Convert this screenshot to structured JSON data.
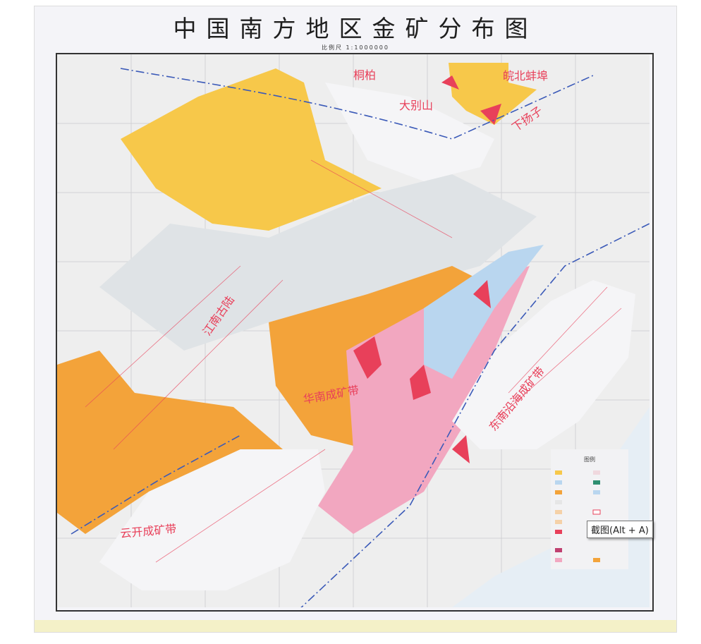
{
  "map": {
    "title": "中国南方地区金矿分布图",
    "scale_label": "比例尺 1:1000000",
    "region_labels": [
      "桐柏",
      "大别山",
      "皖北蚌埠",
      "下扬子",
      "江南古陆",
      "华南成矿带",
      "东南沿海成矿带",
      "云开成矿带"
    ],
    "legend_title": "图例",
    "colors": {
      "yellow": "#f7c84a",
      "orange": "#f3a33a",
      "pink": "#f2a7c0",
      "red": "#e8405a",
      "blue": "#b9d6ef",
      "grey": "#e6e6e6",
      "boundary": "#3b5ab8"
    }
  },
  "tooltip": {
    "text": "截图(Alt + A)"
  }
}
